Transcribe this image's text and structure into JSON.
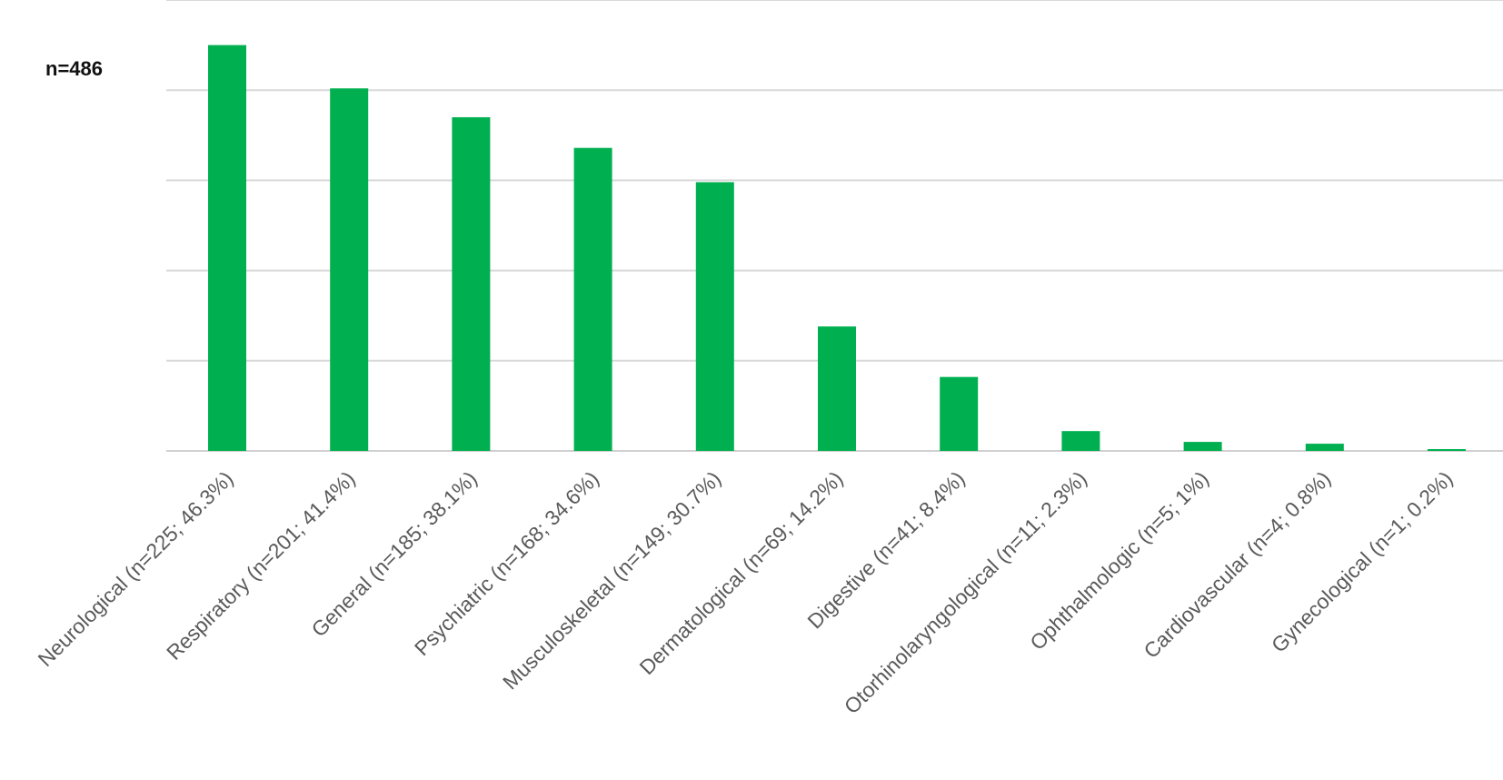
{
  "chart_data": {
    "type": "bar",
    "annotation": "n=486",
    "categories": [
      "Neurological (n=225; 46.3%)",
      "Respiratory (n=201; 41.4%)",
      "General (n=185; 38.1%)",
      "Psychiatric (n=168; 34.6%)",
      "Musculoskeletal (n=149; 30.7%)",
      "Dermatological (n=69; 14.2%)",
      "Digestive (n=41; 8.4%)",
      "Otorhinolaryngological (n=11; 2.3%)",
      "Ophthalmologic (n=5; 1%)",
      "Cardiovascular (n=4; 0.8%)",
      "Gynecological (n=1; 0.2%)"
    ],
    "values": [
      225,
      201,
      185,
      168,
      149,
      69,
      41,
      11,
      5,
      4,
      1
    ],
    "ylim": [
      0,
      250
    ],
    "ygrid_step": 50,
    "grid": true,
    "legend": "none",
    "colors": {
      "bar": "#00b050",
      "grid": "#d9d9d9",
      "label": "#5a5a5a"
    }
  }
}
